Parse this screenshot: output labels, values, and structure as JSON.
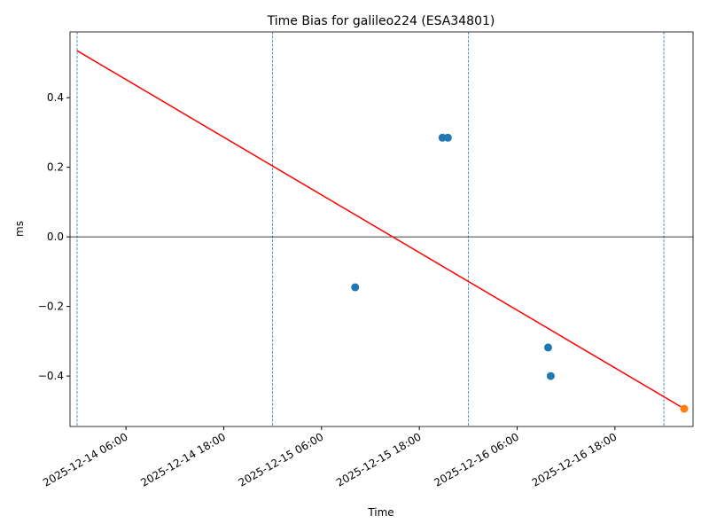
{
  "chart_data": {
    "type": "scatter",
    "title": "Time Bias for galileo224 (ESA34801)",
    "x_label": "Time",
    "y_label": "ms",
    "xlim": [
      "2025-12-13 23:08",
      "2025-12-17 03:35"
    ],
    "xticks": [
      "2025-12-14 06:00",
      "2025-12-14 18:00",
      "2025-12-15 06:00",
      "2025-12-15 18:00",
      "2025-12-16 06:00",
      "2025-12-16 18:00"
    ],
    "ylim": [
      -0.545,
      0.589
    ],
    "yticks": [
      {
        "value": -0.4,
        "label": "−0.4"
      },
      {
        "value": -0.2,
        "label": "−0.2"
      },
      {
        "value": 0,
        "label": "0.0"
      },
      0.2,
      0.4
    ],
    "vlines": [
      "2025-12-14 00:00",
      "2025-12-15 00:00",
      "2025-12-16 00:00",
      "2025-12-17 00:00"
    ],
    "vline_color": "#1f77b4",
    "hlines": [
      0
    ],
    "hline_color": "#000000",
    "series": [
      {
        "type": "scatter",
        "color": "#1f77b4",
        "x": [
          "2025-12-15 10:07",
          "2025-12-15 20:50",
          "2025-12-15 21:30",
          "2025-12-16 09:48",
          "2025-12-16 10:07"
        ],
        "values": [
          -0.145,
          0.285,
          0.285,
          -0.318,
          -0.4
        ]
      },
      {
        "type": "line",
        "color": "#ff0000",
        "x": [
          "2025-12-14 00:00",
          "2025-12-17 02:30"
        ],
        "values": [
          0.535,
          -0.494
        ]
      },
      {
        "type": "scatter",
        "color": "#ff7f0e",
        "x": [
          "2025-12-17 02:30"
        ],
        "values": [
          -0.494
        ]
      }
    ]
  }
}
